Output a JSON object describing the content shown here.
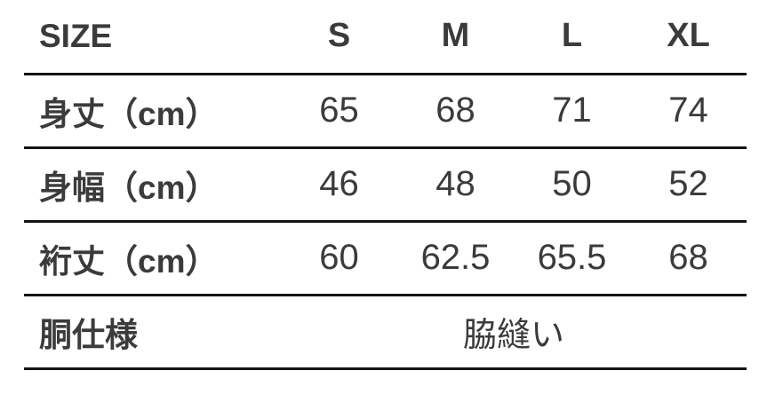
{
  "table": {
    "header": {
      "label": "SIZE",
      "columns": [
        "S",
        "M",
        "L",
        "XL"
      ]
    },
    "rows": [
      {
        "label": "身丈（cm）",
        "values": [
          "65",
          "68",
          "71",
          "74"
        ]
      },
      {
        "label": "身幅（cm）",
        "values": [
          "46",
          "48",
          "50",
          "52"
        ]
      },
      {
        "label": "裄丈（cm）",
        "values": [
          "60",
          "62.5",
          "65.5",
          "68"
        ]
      },
      {
        "label": "胴仕様",
        "span_value": "脇縫い"
      }
    ],
    "colors": {
      "text": "#3b3b3b",
      "rule": "#141414",
      "background": "#ffffff"
    }
  }
}
